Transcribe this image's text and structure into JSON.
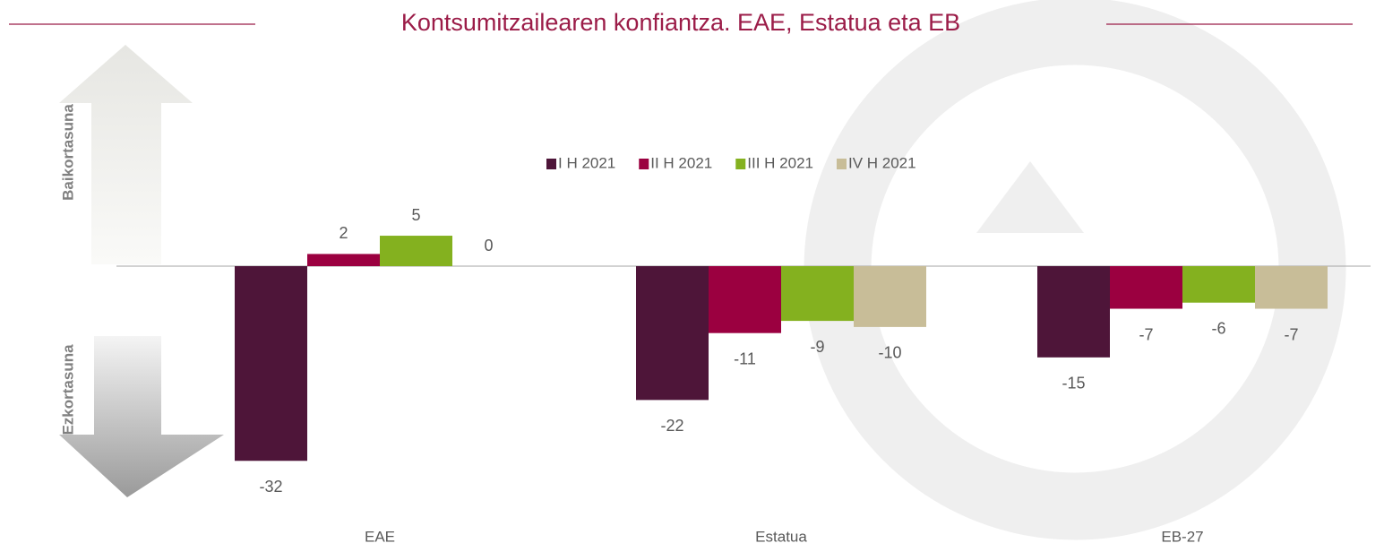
{
  "chart_data": {
    "type": "bar",
    "title": "Kontsumitzailearen konfiantza. EAE, Estatua eta EB",
    "positive_label": "Baikortasuna",
    "negative_label": "Ezkortasuna",
    "categories": [
      "EAE",
      "Estatua",
      "EB-27"
    ],
    "series": [
      {
        "name": "I H 2021",
        "color": "#4e1539",
        "values": [
          -32,
          -22,
          -15
        ]
      },
      {
        "name": "II H 2021",
        "color": "#9b0040",
        "values": [
          2,
          -11,
          -7
        ]
      },
      {
        "name": "III H 2021",
        "color": "#84b11f",
        "values": [
          5,
          -9,
          -6
        ]
      },
      {
        "name": "IV H 2021",
        "color": "#c8bd98",
        "values": [
          0,
          -10,
          -7
        ]
      }
    ],
    "ylim": [
      -38,
      38
    ]
  }
}
